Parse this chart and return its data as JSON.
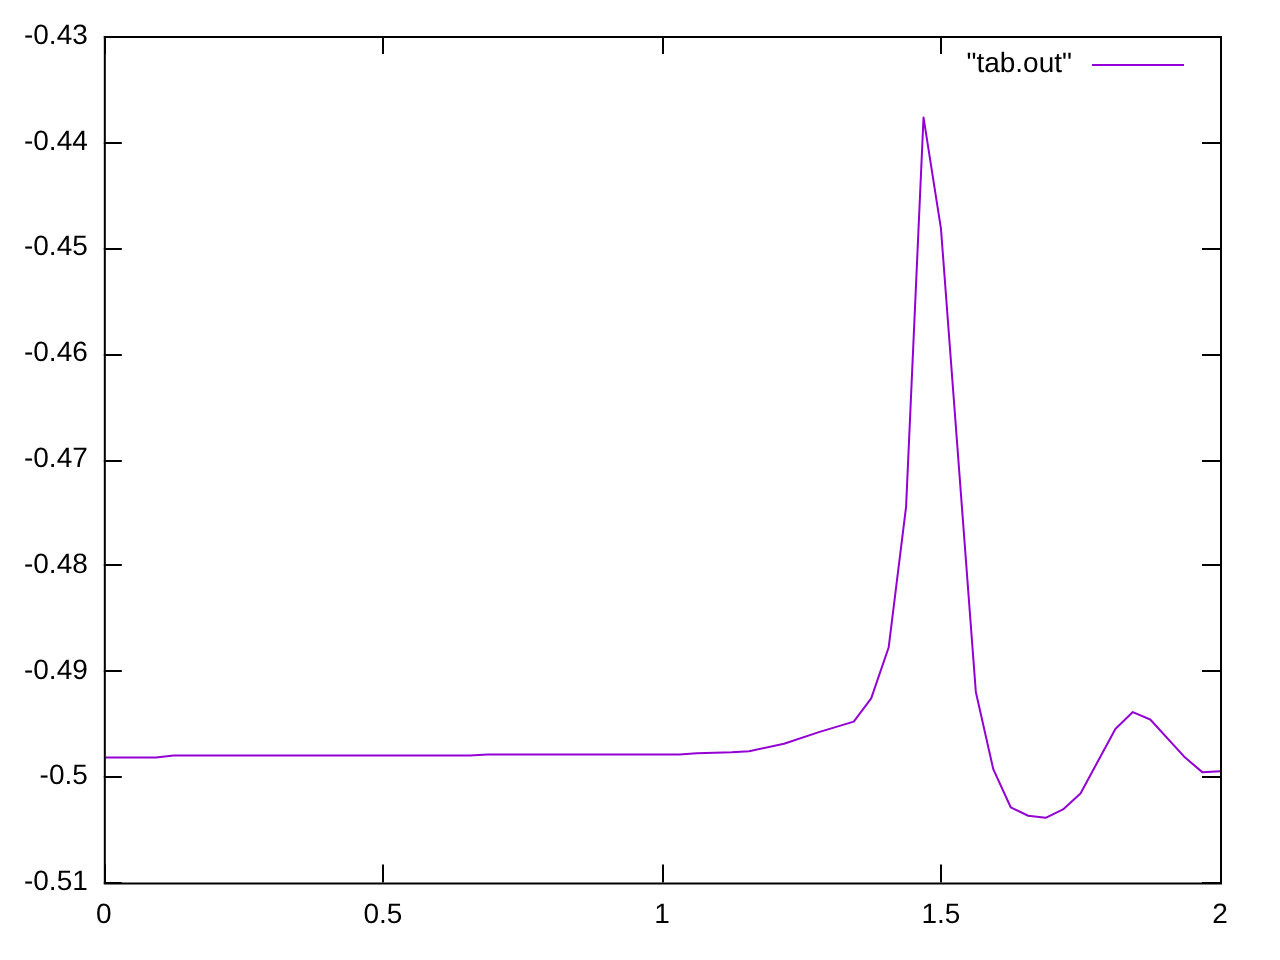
{
  "chart_data": {
    "type": "line",
    "legend": "top right",
    "marker": "none",
    "line_style": "solid",
    "grid": false,
    "xlim": [
      0,
      2
    ],
    "xticks": [
      0,
      0.5,
      1,
      1.5,
      2
    ],
    "ylim": [
      -0.51,
      -0.43
    ],
    "yticks": [
      -0.51,
      -0.5,
      -0.49,
      -0.48,
      -0.47,
      -0.46,
      -0.45,
      -0.44,
      -0.43
    ],
    "x": [
      0,
      0.09375,
      0.125,
      0.65625,
      0.6875,
      1.03125,
      1.0625,
      1.125,
      1.15625,
      1.21875,
      1.28125,
      1.34375,
      1.375,
      1.40625,
      1.4375,
      1.46875,
      1.5,
      1.5625,
      1.59375,
      1.625,
      1.65625,
      1.6875,
      1.71875,
      1.75,
      1.8125,
      1.84375,
      1.875,
      1.9375,
      1.96875,
      2
    ],
    "series": [
      {
        "name": "\"tab.out\"",
        "color": "#9400d3",
        "values": [
          -0.4982,
          -0.4982,
          -0.498,
          -0.498,
          -0.4979,
          -0.4979,
          -0.4978,
          -0.4977,
          -0.4976,
          -0.4969,
          -0.4958,
          -0.4948,
          -0.4926,
          -0.4878,
          -0.4745,
          -0.4377,
          -0.4482,
          -0.492,
          -0.4993,
          -0.5029,
          -0.5037,
          -0.5039,
          -0.5031,
          -0.5016,
          -0.4955,
          -0.4939,
          -0.4946,
          -0.4982,
          -0.4996,
          -0.4995
        ]
      }
    ]
  }
}
